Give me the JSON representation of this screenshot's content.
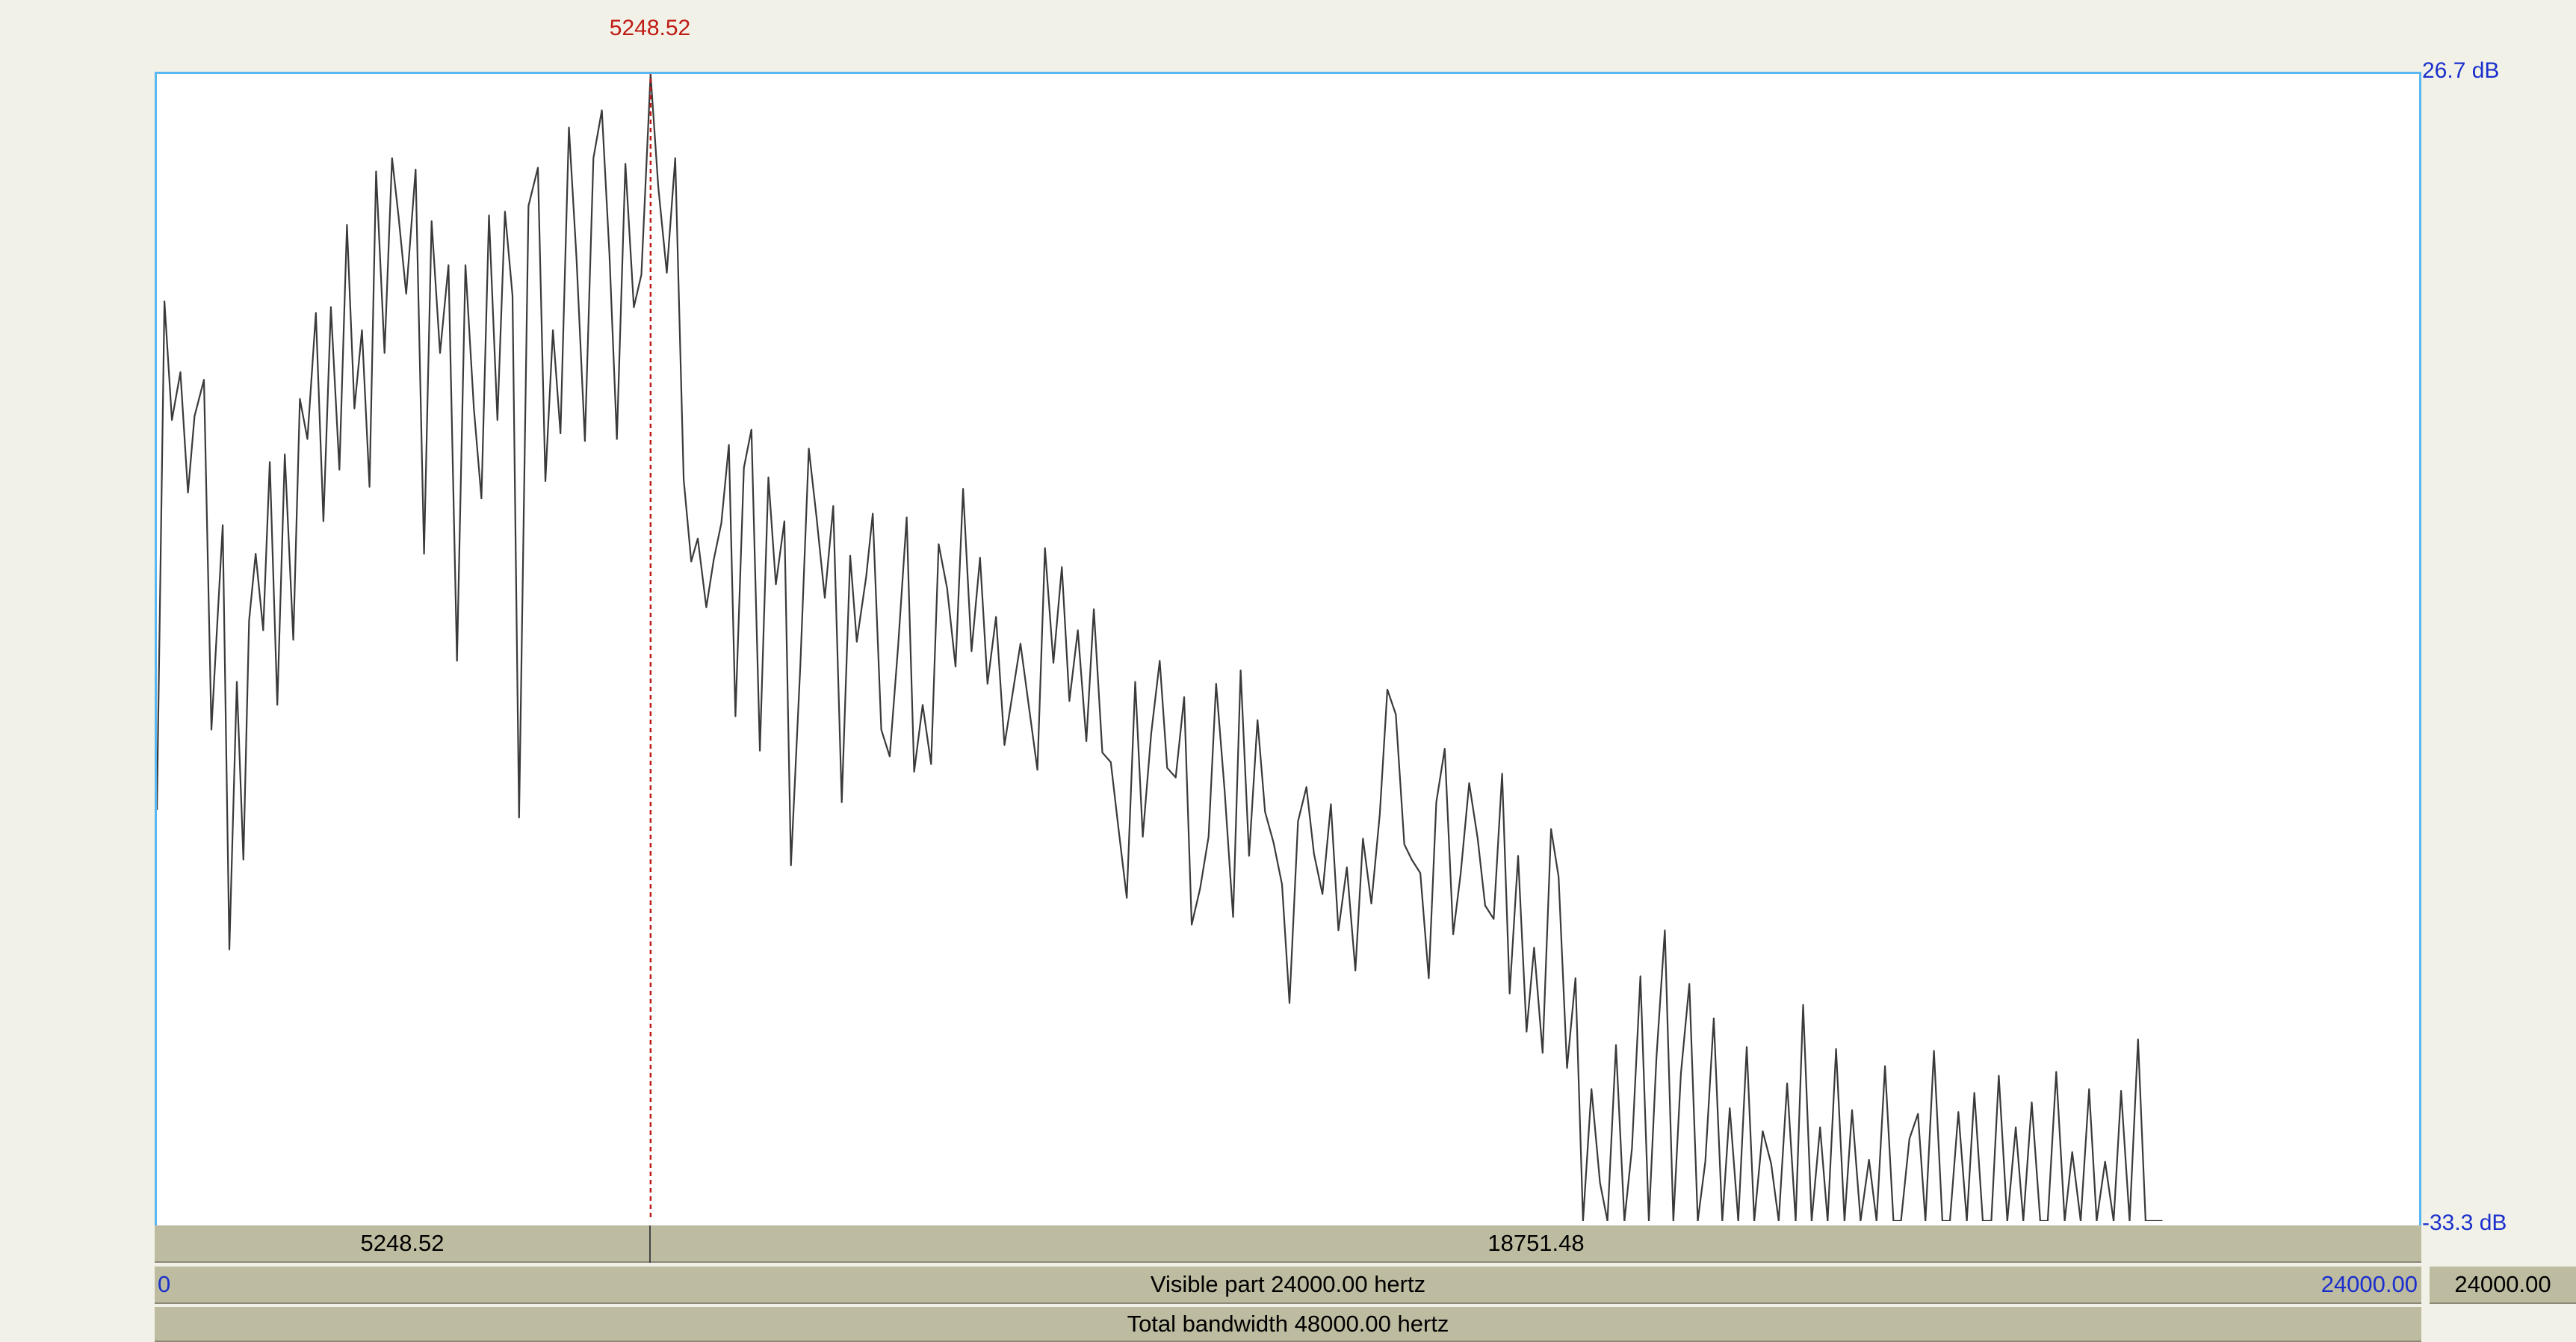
{
  "cursor": {
    "frequency_hz": 5248.52,
    "label": "5248.52",
    "color": "#c01a14"
  },
  "axis": {
    "db_top": "26.7 dB",
    "db_bottom": "-33.3 dB",
    "db_max": 26.7,
    "db_min": -33.3,
    "freq_min_hz": 0,
    "freq_max_hz": 24000,
    "label_color": "#1a2fcc"
  },
  "selection": {
    "left_width": "5248.52",
    "right_width": "18751.48"
  },
  "visible": {
    "label": "Visible part 24000.00 hertz",
    "start": "0",
    "end": "24000.00",
    "end_box": "24000.00"
  },
  "total": {
    "label": "Total bandwidth 48000.00 hertz"
  },
  "colors": {
    "background": "#f2f1e7",
    "frame": "#5bb7f0",
    "bar": "#bdbba0",
    "curve": "#3a3a3a"
  },
  "spectrum": {
    "freq_hz": [
      0,
      80,
      160,
      250,
      330,
      400,
      500,
      580,
      700,
      770,
      850,
      920,
      980,
      1050,
      1130,
      1200,
      1280,
      1360,
      1450,
      1520,
      1600,
      1690,
      1770,
      1850,
      1940,
      2020,
      2100,
      2180,
      2260,
      2330,
      2420,
      2500,
      2570,
      2650,
      2750,
      2840,
      2920,
      3010,
      3100,
      3190,
      3280,
      3370,
      3450,
      3530,
      3620,
      3700,
      3780,
      3850,
      3950,
      4050,
      4130,
      4210,
      4290,
      4380,
      4460,
      4550,
      4640,
      4730,
      4810,
      4890,
      4980,
      5070,
      5150,
      5248,
      5330,
      5420,
      5510,
      5600,
      5680,
      5750,
      5840,
      5920,
      6000,
      6080,
      6150,
      6240,
      6320,
      6410,
      6500,
      6580,
      6670,
      6740,
      6840,
      6930,
      7010,
      7100,
      7190,
      7280,
      7370,
      7440,
      7540,
      7610,
      7700,
      7790,
      7880,
      7970,
      8050,
      8140,
      8230,
      8310,
      8400,
      8490,
      8570,
      8660,
      8750,
      8830,
      8920,
      9010,
      9100,
      9180,
      9270,
      9360,
      9440,
      9530,
      9620,
      9700,
      9790,
      9880,
      9960,
      10050,
      10140,
      10220,
      10310,
      10400,
      10480,
      10570,
      10660,
      10740,
      10830,
      10920,
      11000,
      11090,
      11180,
      11260,
      11350,
      11440,
      11520,
      11610,
      11700,
      11780,
      11870,
      11960,
      12040,
      12130,
      12220,
      12300,
      12390,
      12480,
      12560,
      12650,
      12740,
      12820,
      12910,
      13000,
      13080,
      13170,
      13260,
      13340,
      13430,
      13520,
      13600,
      13690,
      13780,
      13860,
      13950,
      14040,
      14120,
      14210,
      14300,
      14380,
      14470,
      14560,
      14640,
      14730,
      14820,
      14900,
      14990,
      15080,
      15160,
      15250,
      15340,
      15420,
      15510,
      15600,
      15680,
      15770,
      15860,
      15940,
      16030,
      16120,
      16200,
      16290,
      16380,
      16460,
      16550,
      16640,
      16720,
      16810,
      16900,
      16980,
      17070,
      17160,
      17240,
      17330,
      17420,
      17500,
      17590,
      17680,
      17760,
      17850,
      17940,
      18020,
      18110,
      18200,
      18280,
      18370,
      18460,
      18540,
      18630,
      18720,
      18800,
      18890,
      18980,
      19060,
      19150,
      19240,
      19320,
      19410,
      19500,
      19580,
      19670,
      19760,
      19840,
      19930,
      20020,
      20100,
      20190,
      20280,
      20360,
      20450,
      20540,
      20620,
      20710,
      20800,
      20880,
      20970,
      21060,
      21140,
      21230,
      21320,
      21400,
      21490,
      21580,
      21660,
      21750,
      21840,
      21920,
      22010,
      22100,
      22180,
      22270,
      24000
    ],
    "db": [
      -11.8,
      14.8,
      8.6,
      11.1,
      4.8,
      8.8,
      10.7,
      -7.6,
      3.1,
      -19.1,
      -5.1,
      -14.4,
      -1.9,
      1.6,
      -2.4,
      6.4,
      -6.3,
      6.8,
      -2.9,
      9.7,
      7.6,
      14.2,
      3.3,
      14.5,
      6.0,
      18.8,
      9.2,
      13.3,
      5.1,
      21.6,
      12.1,
      22.3,
      19.2,
      15.2,
      21.7,
      1.6,
      19.0,
      12.1,
      16.7,
      -4.0,
      16.7,
      9.2,
      4.5,
      19.3,
      8.6,
      19.5,
      15.1,
      -12.2,
      19.8,
      21.8,
      5.4,
      13.3,
      7.9,
      23.9,
      17.1,
      7.5,
      22.3,
      24.8,
      17.3,
      7.6,
      22.0,
      14.5,
      16.2,
      26.7,
      20.8,
      16.3,
      22.3,
      5.5,
      1.2,
      2.4,
      -1.2,
      1.3,
      3.2,
      7.3,
      -6.9,
      6.1,
      8.1,
      -8.7,
      5.6,
      0.0,
      3.3,
      -14.7,
      -4.2,
      7.1,
      3.6,
      -0.7,
      4.1,
      -11.4,
      1.5,
      -3.0,
      0.4,
      3.7,
      -7.6,
      -9.0,
      -3.2,
      3.5,
      -9.8,
      -6.3,
      -9.4,
      2.1,
      -0.2,
      -4.3,
      5.0,
      -3.5,
      1.4,
      -5.2,
      -1.7,
      -8.4,
      -5.6,
      -3.1,
      -6.4,
      -9.7,
      1.9,
      -4.1,
      0.9,
      -6.1,
      -2.4,
      -8.2,
      -1.3,
      -8.8,
      -9.3,
      -12.7,
      -16.4,
      -5.1,
      -13.2,
      -7.8,
      -4.0,
      -9.6,
      -10.1,
      -5.9,
      -17.8,
      -15.9,
      -13.2,
      -5.2,
      -10.8,
      -17.4,
      -4.5,
      -14.2,
      -7.1,
      -11.9,
      -13.5,
      -15.7,
      -21.9,
      -12.4,
      -10.6,
      -14.1,
      -16.2,
      -11.5,
      -18.1,
      -14.8,
      -20.2,
      -13.3,
      -16.7,
      -12.0,
      -5.5,
      -6.8,
      -13.6,
      -14.4,
      -15.1,
      -20.6,
      -11.4,
      -8.6,
      -18.3,
      -15.1,
      -10.4,
      -13.3,
      -16.8,
      -17.5,
      -9.9,
      -21.4,
      -14.2,
      -23.4,
      -19.0,
      -24.5,
      -12.8,
      -15.3,
      -25.3,
      -20.6,
      -33.3,
      -26.4,
      -31.3,
      -33.3,
      -24.1,
      -33.3,
      -29.5,
      -20.5,
      -33.3,
      -24.8,
      -18.1,
      -33.3,
      -25.6,
      -20.9,
      -33.3,
      -30.2,
      -22.7,
      -33.3,
      -27.4,
      -33.3,
      -24.2,
      -33.3,
      -28.6,
      -30.3,
      -33.3,
      -26.1,
      -33.3,
      -22.0,
      -33.3,
      -28.4,
      -33.3,
      -24.3,
      -33.3,
      -27.5,
      -33.3,
      -30.1,
      -33.3,
      -25.2,
      -33.3,
      -33.3,
      -29.0,
      -27.7,
      -33.3,
      -24.4,
      -33.3,
      -33.3,
      -27.6,
      -33.3,
      -26.6,
      -33.3,
      -33.3,
      -25.7,
      -33.3,
      -28.4,
      -33.3,
      -27.1,
      -33.3,
      -33.3,
      -25.5,
      -33.3,
      -29.7,
      -33.3,
      -26.4,
      -33.3,
      -30.2,
      -33.3,
      -26.5,
      -33.3,
      -23.8,
      -33.3,
      -33.3,
      -33.3
    ]
  }
}
